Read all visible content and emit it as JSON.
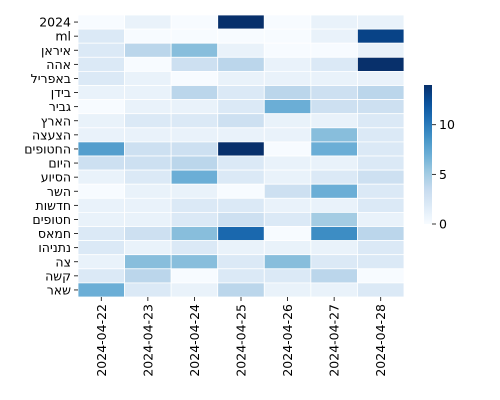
{
  "chart_data": {
    "type": "heatmap",
    "title": "",
    "xlabel": "",
    "ylabel": "",
    "x_labels": [
      "2024-04-22",
      "2024-04-23",
      "2024-04-24",
      "2024-04-25",
      "2024-04-26",
      "2024-04-27",
      "2024-04-28"
    ],
    "y_labels": [
      "2024",
      "ml",
      "איראן",
      "אהה",
      "באפריל",
      "בידן",
      "גביר",
      "הארץ",
      "הצעצה",
      "החטופים",
      "היום",
      "הסיוע",
      "השר",
      "חדשות",
      "חטופים",
      "חמאס",
      "נתניהו",
      "צה",
      "קשה",
      "שאר"
    ],
    "values": [
      [
        0,
        1,
        0,
        14,
        0,
        1,
        1
      ],
      [
        2,
        0,
        0,
        0,
        0,
        1,
        13
      ],
      [
        2,
        4,
        6,
        1,
        0,
        0,
        1
      ],
      [
        2,
        0,
        3,
        4,
        1,
        2,
        14
      ],
      [
        2,
        1,
        0,
        1,
        1,
        1,
        1
      ],
      [
        1,
        1,
        4,
        2,
        4,
        3,
        4
      ],
      [
        0,
        1,
        1,
        2,
        7,
        3,
        3
      ],
      [
        1,
        2,
        2,
        3,
        1,
        1,
        2
      ],
      [
        1,
        1,
        1,
        1,
        1,
        6,
        2
      ],
      [
        8,
        3,
        3,
        14,
        0,
        7,
        2
      ],
      [
        3,
        3,
        4,
        2,
        1,
        1,
        2
      ],
      [
        1,
        2,
        7,
        2,
        1,
        2,
        3
      ],
      [
        0,
        1,
        1,
        0,
        3,
        7,
        2
      ],
      [
        1,
        1,
        2,
        2,
        1,
        1,
        2
      ],
      [
        1,
        1,
        2,
        3,
        2,
        5,
        1
      ],
      [
        2,
        3,
        6,
        11,
        0,
        9,
        4
      ],
      [
        2,
        1,
        2,
        1,
        1,
        1,
        2
      ],
      [
        1,
        6,
        6,
        2,
        6,
        2,
        2
      ],
      [
        2,
        4,
        0,
        2,
        2,
        4,
        0
      ],
      [
        7,
        2,
        1,
        4,
        1,
        1,
        2
      ]
    ],
    "colorbar": {
      "min": 0,
      "max": 14,
      "ticks": [
        0,
        5,
        10
      ],
      "colormap": "Blues"
    },
    "colors": {
      "low": "#f7fbff",
      "high": "#08306b"
    }
  }
}
